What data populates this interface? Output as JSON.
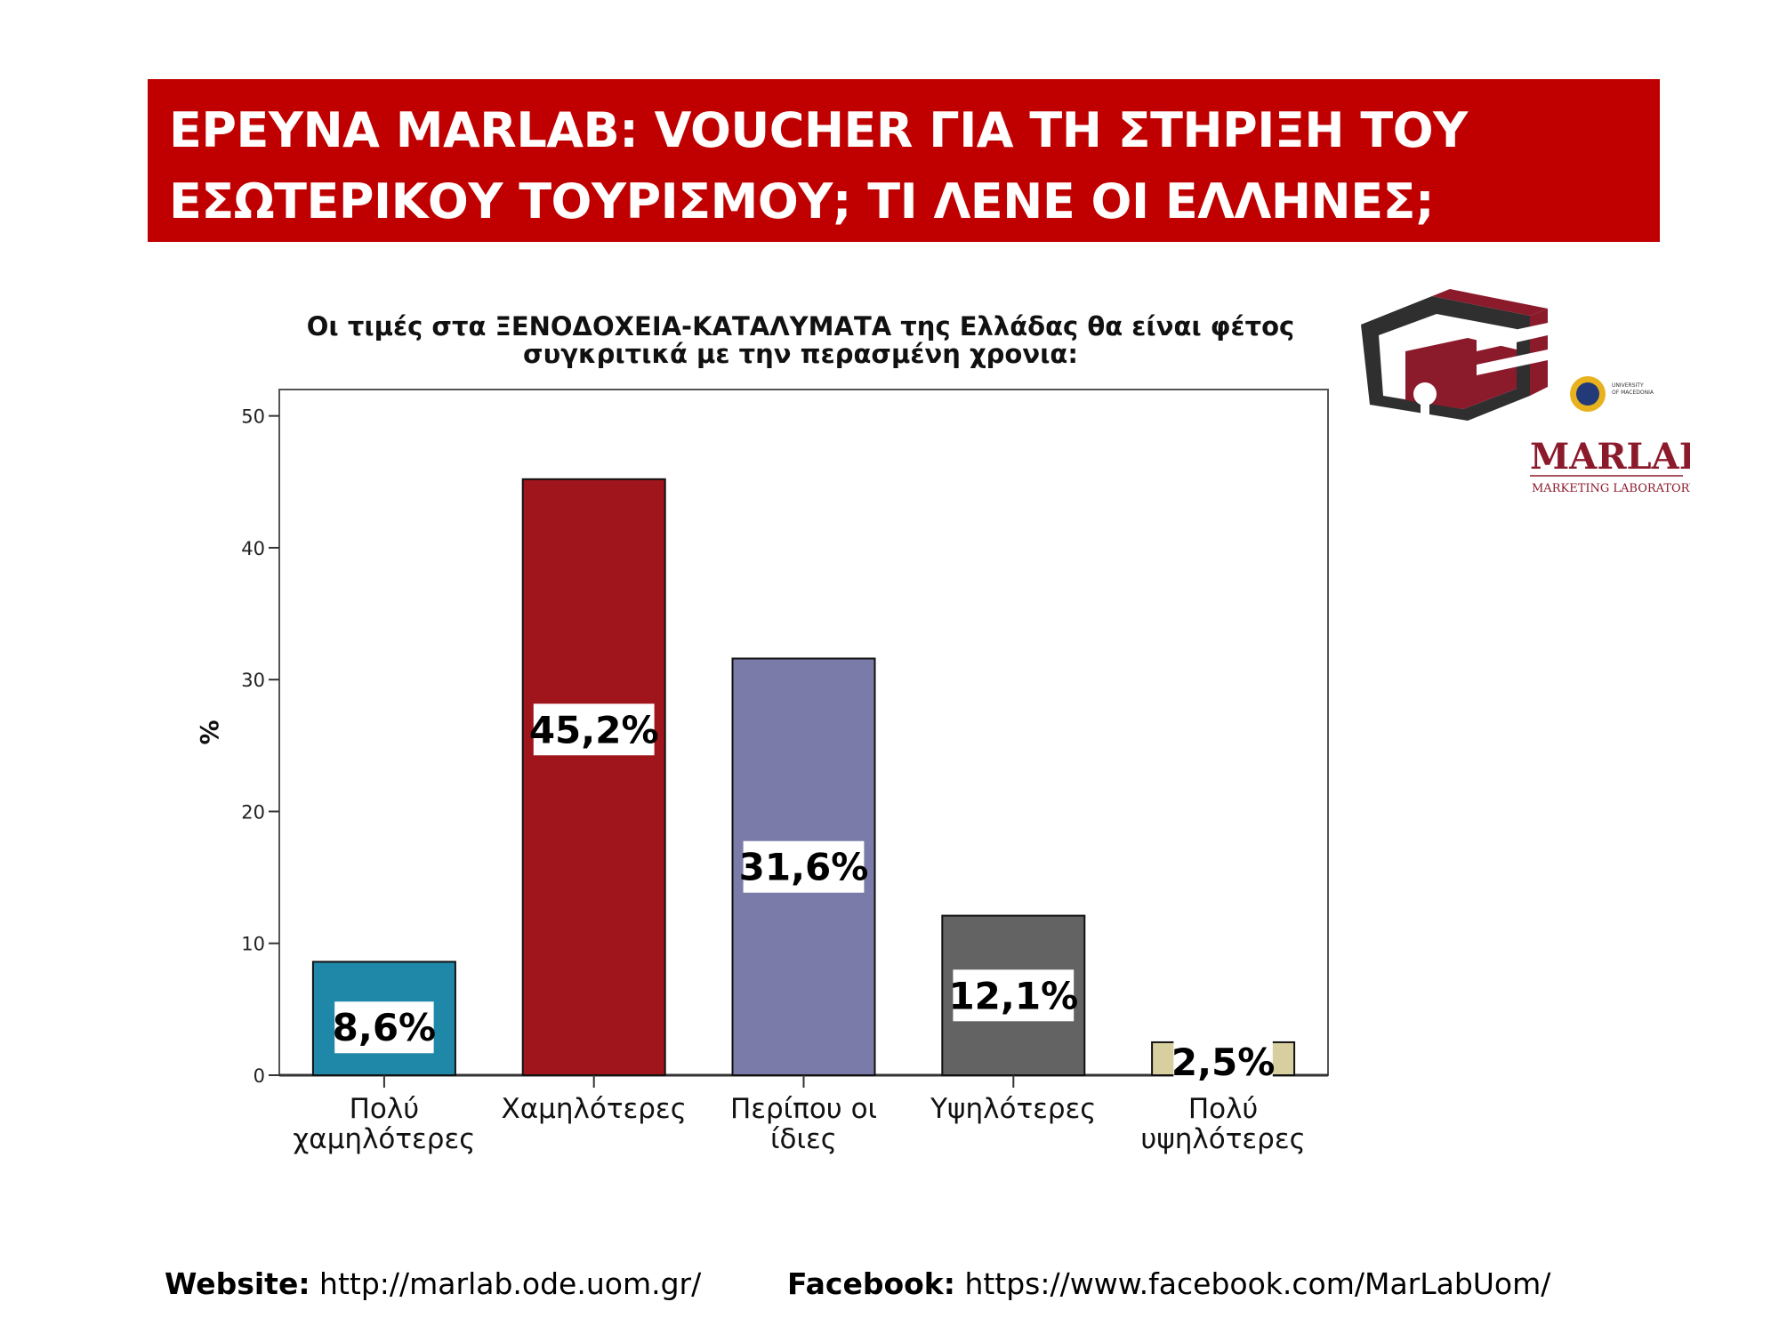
{
  "header": {
    "line1": "ΕΡΕΥΝΑ MARLAB: VOUCHER ΓΙΑ ΤΗ ΣΤΗΡΙΞΗ ΤΟΥ",
    "line2": "ΕΣΩΤΕΡΙΚΟΥ ΤΟΥΡΙΣΜΟΥ; ΤΙ ΛΕΝΕ ΟΙ ΕΛΛΗΝΕΣ;"
  },
  "logo": {
    "wordmark": "MARLAB",
    "tagline": "MARKETING LABORATORY",
    "university": "UNIVERSITY OF MACEDONIA",
    "brand_color": "#8b1a2b"
  },
  "chart_data": {
    "type": "bar",
    "title_line1": "Οι τιμές στα ΞΕΝΟΔΟΧΕΙΑ-ΚΑΤΑΛΥΜΑΤΑ της Ελλάδας θα είναι φέτος",
    "title_line2": "συγκριτικά με την περασμένη χρονια:",
    "ylabel": "%",
    "ylim": [
      0,
      52
    ],
    "yticks": [
      0,
      10,
      20,
      30,
      40,
      50
    ],
    "categories": [
      [
        "Πολύ",
        "χαμηλότερες"
      ],
      [
        "Χαμηλότερες"
      ],
      [
        "Περίπου οι",
        "ίδιες"
      ],
      [
        "Υψηλότερες"
      ],
      [
        "Πολύ",
        "υψηλότερες"
      ]
    ],
    "values": [
      8.6,
      45.2,
      31.6,
      12.1,
      2.5
    ],
    "data_labels": [
      "8,6%",
      "45,2%",
      "31,6%",
      "12,1%",
      "2,5%"
    ],
    "colors": [
      "#1f88a8",
      "#a0141b",
      "#7a7ba8",
      "#636363",
      "#d8cfa0"
    ],
    "grid": false
  },
  "footer": {
    "website_label": "Website:",
    "website_url": "http://marlab.ode.uom.gr/",
    "facebook_label": "Facebook:",
    "facebook_url": "https://www.facebook.com/MarLabUom/"
  }
}
